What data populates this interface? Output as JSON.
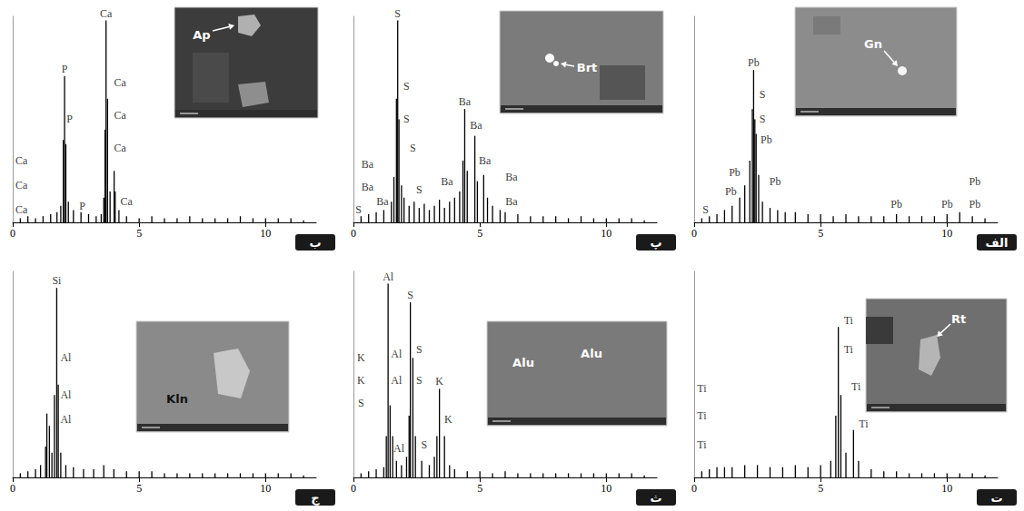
{
  "chart_data": [
    {
      "type": "bar",
      "title": "الف",
      "inset_labels": [
        "Gn"
      ],
      "color": "#000000",
      "grid": false,
      "tick_labels": "x",
      "xlim": [
        0,
        12
      ],
      "xticks": [
        0,
        5,
        10
      ],
      "ylim": [
        0,
        100
      ],
      "x": [
        0.3,
        0.6,
        0.9,
        1.2,
        1.5,
        1.8,
        2.0,
        2.2,
        2.3,
        2.35,
        2.4,
        2.45,
        2.55,
        2.7,
        3.0,
        3.3,
        3.6,
        4.0,
        4.5,
        5.0,
        5.5,
        6.0,
        6.5,
        7.0,
        7.5,
        8.0,
        8.5,
        9.0,
        9.5,
        10.0,
        10.5,
        11.0,
        11.5
      ],
      "values": [
        2,
        3,
        4,
        6,
        8,
        12,
        18,
        30,
        55,
        74,
        50,
        43,
        23,
        10,
        7,
        6,
        5,
        5,
        4,
        4,
        3,
        4,
        3,
        3,
        3,
        4,
        3,
        3,
        3,
        4,
        5,
        3,
        2
      ],
      "annotations": [
        {
          "text": "S",
          "x": 0.45,
          "y": 2.5
        },
        {
          "text": "Pb",
          "x": 1.45,
          "y": 11.5
        },
        {
          "text": "Pb",
          "x": 1.6,
          "y": 20.5
        },
        {
          "text": "Pb",
          "x": 2.35,
          "y": 74
        },
        {
          "text": "S",
          "x": 2.7,
          "y": 58.5
        },
        {
          "text": "S",
          "x": 2.7,
          "y": 46.5
        },
        {
          "text": "Pb",
          "x": 2.85,
          "y": 36.5
        },
        {
          "text": "Pb",
          "x": 3.2,
          "y": 16.5
        },
        {
          "text": "Pb",
          "x": 8.0,
          "y": 5.5
        },
        {
          "text": "Pb",
          "x": 10.0,
          "y": 5.5
        },
        {
          "text": "Pb",
          "x": 11.1,
          "y": 5.5
        },
        {
          "text": "Pb",
          "x": 11.1,
          "y": 16.5
        }
      ]
    },
    {
      "type": "bar",
      "title": "ب",
      "inset_labels": [
        "Ap"
      ],
      "color": "#000000",
      "grid": false,
      "tick_labels": "x",
      "xlim": [
        0,
        12
      ],
      "xticks": [
        0,
        5,
        10
      ],
      "ylim": [
        0,
        100
      ],
      "x": [
        0.3,
        0.6,
        0.9,
        1.2,
        1.5,
        1.75,
        1.9,
        2.0,
        2.05,
        2.1,
        2.2,
        2.4,
        2.7,
        3.0,
        3.3,
        3.5,
        3.6,
        3.65,
        3.69,
        3.75,
        3.85,
        4.01,
        4.05,
        4.2,
        4.5,
        5.0,
        5.5,
        6.0,
        6.5,
        7.0,
        7.5,
        8.0,
        8.5,
        9.0,
        9.5,
        10.0,
        10.5,
        11.0,
        11.5
      ],
      "values": [
        2,
        3,
        2,
        3,
        4,
        5,
        8,
        40,
        71,
        38,
        10,
        6,
        5,
        4,
        3,
        4,
        12,
        45,
        98,
        60,
        15,
        25,
        15,
        6,
        3,
        2,
        3,
        2,
        2,
        3,
        2,
        2,
        2,
        3,
        2,
        2,
        2,
        2,
        1
      ],
      "annotations": [
        {
          "text": "Ca",
          "x": 0.35,
          "y": 26.5
        },
        {
          "text": "Ca",
          "x": 0.35,
          "y": 14.5
        },
        {
          "text": "Ca",
          "x": 0.35,
          "y": 2.5
        },
        {
          "text": "P",
          "x": 2.05,
          "y": 71
        },
        {
          "text": "P",
          "x": 2.25,
          "y": 46.5
        },
        {
          "text": "P",
          "x": 2.75,
          "y": 4.5
        },
        {
          "text": "Ca",
          "x": 3.69,
          "y": 98
        },
        {
          "text": "Ca",
          "x": 4.25,
          "y": 64.5
        },
        {
          "text": "Ca",
          "x": 4.25,
          "y": 48.5
        },
        {
          "text": "Ca",
          "x": 4.25,
          "y": 32.5
        },
        {
          "text": "Ca",
          "x": 4.5,
          "y": 6.5
        }
      ]
    },
    {
      "type": "bar",
      "title": "پ",
      "inset_labels": [
        "Brt"
      ],
      "color": "#000000",
      "grid": false,
      "tick_labels": "x",
      "xlim": [
        0,
        12
      ],
      "xticks": [
        0,
        5,
        10
      ],
      "ylim": [
        0,
        100
      ],
      "x": [
        0.3,
        0.6,
        0.9,
        1.2,
        1.5,
        1.6,
        1.7,
        1.75,
        1.8,
        1.9,
        2.0,
        2.2,
        2.4,
        2.6,
        2.8,
        3.0,
        3.2,
        3.4,
        3.6,
        3.8,
        4.0,
        4.2,
        4.33,
        4.4,
        4.5,
        4.8,
        4.9,
        5.15,
        5.3,
        5.5,
        5.8,
        6.0,
        6.5,
        7.0,
        7.5,
        8.0,
        8.5,
        9.0,
        9.5,
        10.0,
        10.5,
        11.0,
        11.5
      ],
      "values": [
        3,
        4,
        5,
        6,
        10,
        22,
        60,
        98,
        50,
        18,
        12,
        8,
        10,
        7,
        9,
        6,
        8,
        11,
        7,
        10,
        12,
        15,
        30,
        55,
        25,
        42,
        20,
        23,
        12,
        8,
        6,
        5,
        4,
        3,
        3,
        3,
        2,
        3,
        2,
        2,
        2,
        2,
        1
      ],
      "annotations": [
        {
          "text": "Ba",
          "x": 0.55,
          "y": 24.5
        },
        {
          "text": "Ba",
          "x": 0.55,
          "y": 13.5
        },
        {
          "text": "S",
          "x": 0.2,
          "y": 2.5
        },
        {
          "text": "Ba",
          "x": 1.15,
          "y": 6.5
        },
        {
          "text": "S",
          "x": 1.75,
          "y": 98
        },
        {
          "text": "S",
          "x": 2.1,
          "y": 62.5
        },
        {
          "text": "S",
          "x": 2.1,
          "y": 46.5
        },
        {
          "text": "S",
          "x": 2.35,
          "y": 32.5
        },
        {
          "text": "S",
          "x": 2.6,
          "y": 12.5
        },
        {
          "text": "Ba",
          "x": 3.7,
          "y": 16.5
        },
        {
          "text": "Ba",
          "x": 4.4,
          "y": 55
        },
        {
          "text": "Ba",
          "x": 4.85,
          "y": 43.5
        },
        {
          "text": "Ba",
          "x": 5.2,
          "y": 26.5
        },
        {
          "text": "Ba",
          "x": 6.25,
          "y": 18.5
        },
        {
          "text": "Ba",
          "x": 6.25,
          "y": 6.5
        }
      ]
    },
    {
      "type": "bar",
      "title": "ت",
      "inset_labels": [
        "Rt"
      ],
      "color": "#000000",
      "grid": false,
      "tick_labels": "x",
      "xlim": [
        0,
        12
      ],
      "xticks": [
        0,
        5,
        10
      ],
      "ylim": [
        0,
        100
      ],
      "x": [
        0.3,
        0.6,
        0.9,
        1.2,
        1.5,
        2.0,
        2.5,
        3.0,
        3.5,
        4.0,
        4.5,
        5.0,
        5.4,
        5.6,
        5.7,
        5.8,
        6.0,
        6.3,
        6.5,
        7.0,
        7.5,
        8.0,
        8.5,
        9.0,
        9.5,
        10.0,
        10.5,
        11.0,
        11.5
      ],
      "values": [
        3,
        4,
        5,
        5,
        5,
        6,
        6,
        5,
        5,
        6,
        5,
        6,
        8,
        30,
        73,
        40,
        12,
        23,
        8,
        4,
        3,
        3,
        2,
        2,
        2,
        2,
        2,
        2,
        1
      ],
      "annotations": [
        {
          "text": "Ti",
          "x": 0.3,
          "y": 39.5
        },
        {
          "text": "Ti",
          "x": 0.3,
          "y": 26.5
        },
        {
          "text": "Ti",
          "x": 0.3,
          "y": 12.5
        },
        {
          "text": "Ti",
          "x": 6.1,
          "y": 72.5
        },
        {
          "text": "Ti",
          "x": 6.1,
          "y": 58.5
        },
        {
          "text": "Ti",
          "x": 6.4,
          "y": 40.5
        },
        {
          "text": "Ti",
          "x": 6.7,
          "y": 22.5
        }
      ]
    },
    {
      "type": "bar",
      "title": "ث",
      "inset_labels": [
        "Alu",
        "Alu"
      ],
      "color": "#000000",
      "grid": false,
      "tick_labels": "x",
      "xlim": [
        0,
        12
      ],
      "xticks": [
        0,
        5,
        10
      ],
      "ylim": [
        0,
        100
      ],
      "x": [
        0.3,
        0.6,
        0.9,
        1.2,
        1.3,
        1.37,
        1.45,
        1.55,
        1.7,
        1.9,
        2.1,
        2.2,
        2.25,
        2.35,
        2.45,
        2.7,
        3.0,
        3.2,
        3.3,
        3.4,
        3.6,
        3.8,
        4.0,
        4.5,
        5.0,
        5.5,
        6.0,
        6.5,
        7.0,
        7.5,
        8.0,
        8.5,
        9.0,
        9.5,
        10.0,
        10.5,
        11.0,
        11.5
      ],
      "values": [
        2,
        3,
        4,
        5,
        20,
        94,
        35,
        20,
        8,
        6,
        10,
        30,
        85,
        58,
        20,
        8,
        6,
        10,
        20,
        43,
        20,
        6,
        4,
        3,
        3,
        2,
        3,
        2,
        2,
        2,
        2,
        2,
        2,
        2,
        2,
        2,
        2,
        1
      ],
      "annotations": [
        {
          "text": "K",
          "x": 0.3,
          "y": 54.5
        },
        {
          "text": "K",
          "x": 0.3,
          "y": 43.5
        },
        {
          "text": "S",
          "x": 0.3,
          "y": 32.5
        },
        {
          "text": "Al",
          "x": 1.37,
          "y": 94
        },
        {
          "text": "Al",
          "x": 1.7,
          "y": 56.5
        },
        {
          "text": "Al",
          "x": 1.7,
          "y": 43.5
        },
        {
          "text": "Al",
          "x": 1.8,
          "y": 10.5
        },
        {
          "text": "S",
          "x": 2.25,
          "y": 85
        },
        {
          "text": "S",
          "x": 2.6,
          "y": 58.5
        },
        {
          "text": "S",
          "x": 2.6,
          "y": 43.5
        },
        {
          "text": "S",
          "x": 2.8,
          "y": 12.5
        },
        {
          "text": "K",
          "x": 3.4,
          "y": 43
        },
        {
          "text": "K",
          "x": 3.75,
          "y": 24.5
        }
      ]
    },
    {
      "type": "bar",
      "title": "ج",
      "inset_labels": [
        "Kln"
      ],
      "color": "#000000",
      "grid": false,
      "tick_labels": "x",
      "xlim": [
        0,
        12
      ],
      "xticks": [
        0,
        5,
        10
      ],
      "ylim": [
        0,
        100
      ],
      "x": [
        0.3,
        0.6,
        0.9,
        1.1,
        1.3,
        1.35,
        1.45,
        1.55,
        1.65,
        1.74,
        1.8,
        1.9,
        2.1,
        2.4,
        2.8,
        3.2,
        3.6,
        4.0,
        4.5,
        5.0,
        5.5,
        6.0,
        6.5,
        7.0,
        7.5,
        8.0,
        8.5,
        9.0,
        9.5,
        10.0,
        10.5,
        11.0,
        11.5
      ],
      "values": [
        2,
        3,
        4,
        6,
        15,
        31,
        25,
        12,
        40,
        92,
        45,
        12,
        6,
        5,
        4,
        4,
        6,
        4,
        3,
        3,
        3,
        2,
        2,
        2,
        2,
        2,
        2,
        2,
        2,
        2,
        2,
        2,
        1
      ],
      "annotations": [
        {
          "text": "Si",
          "x": 1.74,
          "y": 92
        },
        {
          "text": "Al",
          "x": 2.1,
          "y": 54.5
        },
        {
          "text": "Al",
          "x": 2.1,
          "y": 36.5
        },
        {
          "text": "Al",
          "x": 2.1,
          "y": 24.5
        }
      ]
    }
  ]
}
